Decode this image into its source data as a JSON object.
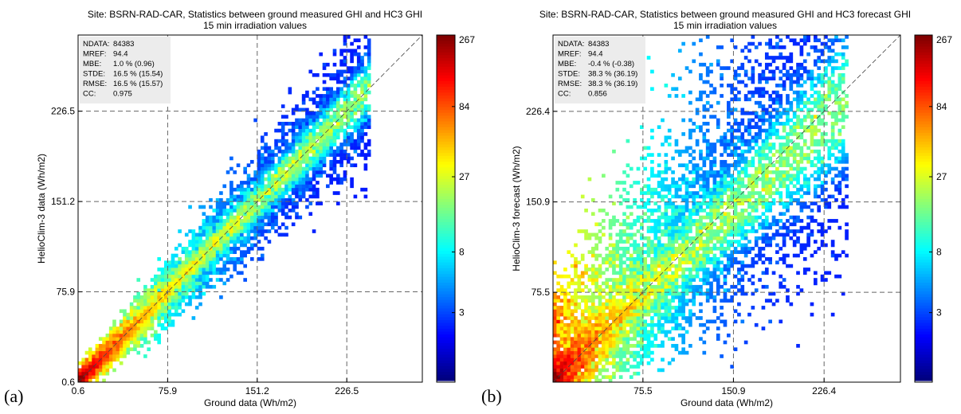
{
  "chart_data": [
    {
      "type": "heatmap",
      "panel_label": "(a)",
      "title": "Site: BSRN-RAD-CAR, Statistics between ground measured GHI and HC3 GHI",
      "subtitle": "15 min irradiation values",
      "xlabel": "Ground data (Wh/m2)",
      "ylabel": "HelioClim-3 data (Wh/m2)",
      "x_ticks": [
        "0.6",
        "75.9",
        "151.2",
        "226.5"
      ],
      "y_ticks": [
        "0.6",
        "75.9",
        "151.2",
        "226.5"
      ],
      "x_tick_values": [
        0.6,
        75.9,
        151.2,
        226.5
      ],
      "y_tick_values": [
        0.6,
        75.9,
        151.2,
        226.5
      ],
      "xlim": [
        0.6,
        290
      ],
      "ylim": [
        0.6,
        290
      ],
      "grid": true,
      "diagonal": true,
      "colorbar_ticks": [
        "3",
        "8",
        "27",
        "84",
        "267"
      ],
      "colorbar_range": [
        1,
        267
      ],
      "colorbar_scale": "log",
      "stats": [
        {
          "label": "NDATA:",
          "value": "84383"
        },
        {
          "label": "MREF:",
          "value": "94.4"
        },
        {
          "label": "MBE:",
          "value": "1.0 % (0.96)"
        },
        {
          "label": "STDE:",
          "value": "16.5 % (15.54)"
        },
        {
          "label": "RMSE:",
          "value": "16.5 % (15.57)"
        },
        {
          "label": "CC:",
          "value": "0.975"
        }
      ],
      "density": {
        "bias": 0,
        "spread_base": 4,
        "spread_slope": 0.1,
        "upward_skew": 0,
        "n": 6000,
        "seed": 11
      }
    },
    {
      "type": "heatmap",
      "panel_label": "(b)",
      "title": "Site: BSRN-RAD-CAR, Statistics between ground measured GHI and HC3 forecast GHI",
      "subtitle": "15 min irradiation values",
      "xlabel": "Ground data (Wh/m2)",
      "ylabel": "HelioClim-3 forecast (Wh/m2)",
      "x_ticks": [
        "75.5",
        "150.9",
        "226.4"
      ],
      "y_ticks": [
        "75.5",
        "150.9",
        "226.4"
      ],
      "x_tick_values": [
        75.5,
        150.9,
        226.4
      ],
      "y_tick_values": [
        75.5,
        150.9,
        226.4
      ],
      "xlim": [
        0.6,
        290
      ],
      "ylim": [
        0.6,
        290
      ],
      "grid": true,
      "diagonal": true,
      "colorbar_ticks": [
        "3",
        "8",
        "27",
        "84",
        "267"
      ],
      "colorbar_range": [
        1,
        267
      ],
      "colorbar_scale": "log",
      "stats": [
        {
          "label": "NDATA:",
          "value": "84383"
        },
        {
          "label": "MREF:",
          "value": "94.4"
        },
        {
          "label": "MBE:",
          "value": "-0.4 % (-0.38)"
        },
        {
          "label": "STDE:",
          "value": "38.3 % (36.19)"
        },
        {
          "label": "RMSE:",
          "value": "38.3 % (36.19)"
        },
        {
          "label": "CC:",
          "value": "0.856"
        }
      ],
      "density": {
        "bias": -8,
        "spread_base": 10,
        "spread_slope": 0.22,
        "upward_skew": 0.55,
        "n": 7000,
        "seed": 23
      }
    }
  ]
}
